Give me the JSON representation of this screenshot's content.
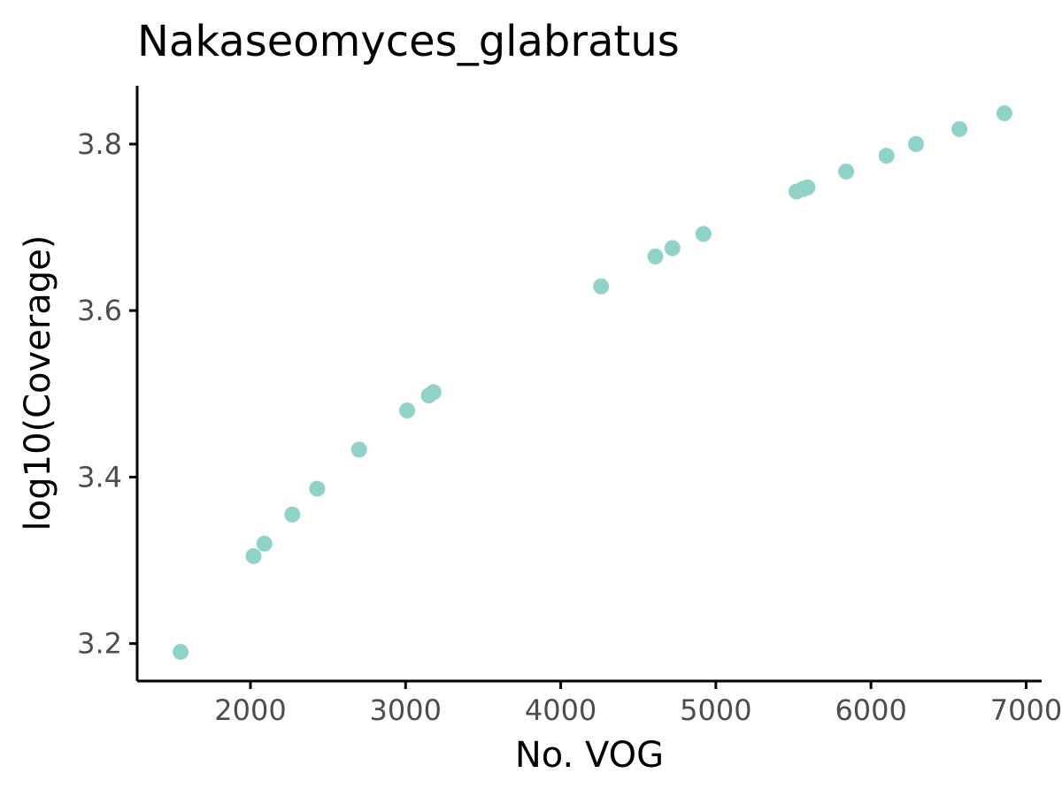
{
  "chart_data": {
    "type": "scatter",
    "title": "Nakaseomyces_glabratus",
    "xlabel": "No. VOG",
    "ylabel": "log10(Coverage)",
    "xlim": [
      1270,
      7100
    ],
    "ylim": [
      3.155,
      3.87
    ],
    "x_ticks": [
      2000,
      3000,
      4000,
      5000,
      6000,
      7000
    ],
    "y_ticks": [
      3.2,
      3.4,
      3.6,
      3.8
    ],
    "x_tick_labels": [
      "2000",
      "3000",
      "4000",
      "5000",
      "6000",
      "7000"
    ],
    "y_tick_labels": [
      "3.2",
      "3.4",
      "3.6",
      "3.8"
    ],
    "point_color": "#8fd3c8",
    "grid": false,
    "legend": "none",
    "points": [
      {
        "x": 1550,
        "y": 3.19
      },
      {
        "x": 2020,
        "y": 3.305
      },
      {
        "x": 2090,
        "y": 3.32
      },
      {
        "x": 2270,
        "y": 3.355
      },
      {
        "x": 2430,
        "y": 3.386
      },
      {
        "x": 2700,
        "y": 3.433
      },
      {
        "x": 3010,
        "y": 3.48
      },
      {
        "x": 3150,
        "y": 3.498
      },
      {
        "x": 3180,
        "y": 3.502
      },
      {
        "x": 4260,
        "y": 3.629
      },
      {
        "x": 4610,
        "y": 3.665
      },
      {
        "x": 4720,
        "y": 3.675
      },
      {
        "x": 4920,
        "y": 3.692
      },
      {
        "x": 5520,
        "y": 3.743
      },
      {
        "x": 5560,
        "y": 3.746
      },
      {
        "x": 5590,
        "y": 3.748
      },
      {
        "x": 5840,
        "y": 3.767
      },
      {
        "x": 6100,
        "y": 3.786
      },
      {
        "x": 6290,
        "y": 3.8
      },
      {
        "x": 6570,
        "y": 3.818
      },
      {
        "x": 6860,
        "y": 3.837
      }
    ]
  }
}
